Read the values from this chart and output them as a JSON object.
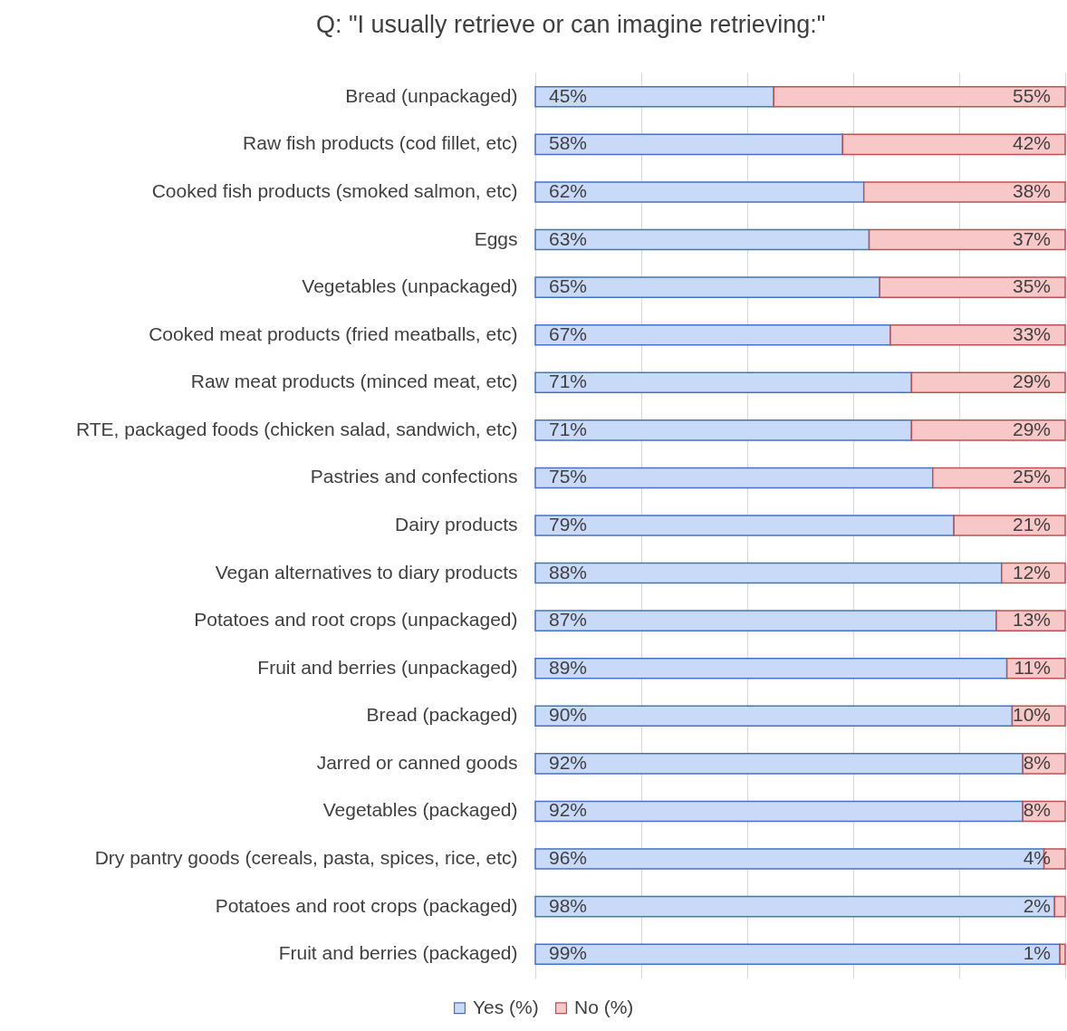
{
  "chart_data": {
    "type": "bar",
    "title": "Q: \"I usually retrieve or can imagine retrieving:\"",
    "orientation": "horizontal",
    "stacked": true,
    "categories": [
      "Bread (unpackaged)",
      "Raw fish products (cod fillet, etc)",
      "Cooked fish products (smoked salmon, etc)",
      "Eggs",
      "Vegetables (unpackaged)",
      "Cooked meat products (fried meatballs, etc)",
      "Raw meat products (minced meat, etc)",
      "RTE, packaged foods (chicken salad, sandwich, etc)",
      "Pastries and confections",
      "Dairy products",
      "Vegan alternatives to diary products",
      "Potatoes and root crops (unpackaged)",
      "Fruit and berries (unpackaged)",
      "Bread (packaged)",
      "Jarred or canned goods",
      "Vegetables (packaged)",
      "Dry pantry goods (cereals, pasta, spices, rice, etc)",
      "Potatoes and root crops (packaged)",
      "Fruit and berries (packaged)"
    ],
    "series": [
      {
        "name": "Yes (%)",
        "color": "#c9daf8",
        "values": [
          45,
          58,
          62,
          63,
          65,
          67,
          71,
          71,
          75,
          79,
          88,
          87,
          89,
          90,
          92,
          92,
          96,
          98,
          99
        ],
        "value_labels": [
          "45%",
          "58%",
          "62%",
          "63%",
          "65%",
          "67%",
          "71%",
          "71%",
          "75%",
          "79%",
          "88%",
          "87%",
          "89%",
          "90%",
          "92%",
          "92%",
          "96%",
          "98%",
          "99%"
        ]
      },
      {
        "name": "No (%)",
        "color": "#f8c8c8",
        "values": [
          55,
          42,
          38,
          37,
          35,
          33,
          29,
          29,
          25,
          21,
          12,
          13,
          11,
          10,
          8,
          8,
          4,
          2,
          1
        ],
        "value_labels": [
          "55%",
          "42%",
          "38%",
          "37%",
          "35%",
          "33%",
          "29%",
          "29%",
          "25%",
          "21%",
          "12%",
          "13%",
          "11%",
          "10%",
          "8%",
          "8%",
          "4%",
          "2%",
          "1%"
        ]
      }
    ],
    "xlim": [
      0,
      100
    ],
    "xticks": [
      {
        "value": 0,
        "label": null
      },
      {
        "value": 20,
        "label": null
      },
      {
        "value": 40,
        "label": null
      },
      {
        "value": 60,
        "label": null
      },
      {
        "value": 80,
        "label": null
      },
      {
        "value": 100,
        "label": null
      }
    ],
    "grid": "x",
    "tick_labels": "y",
    "legend": "bottom"
  }
}
